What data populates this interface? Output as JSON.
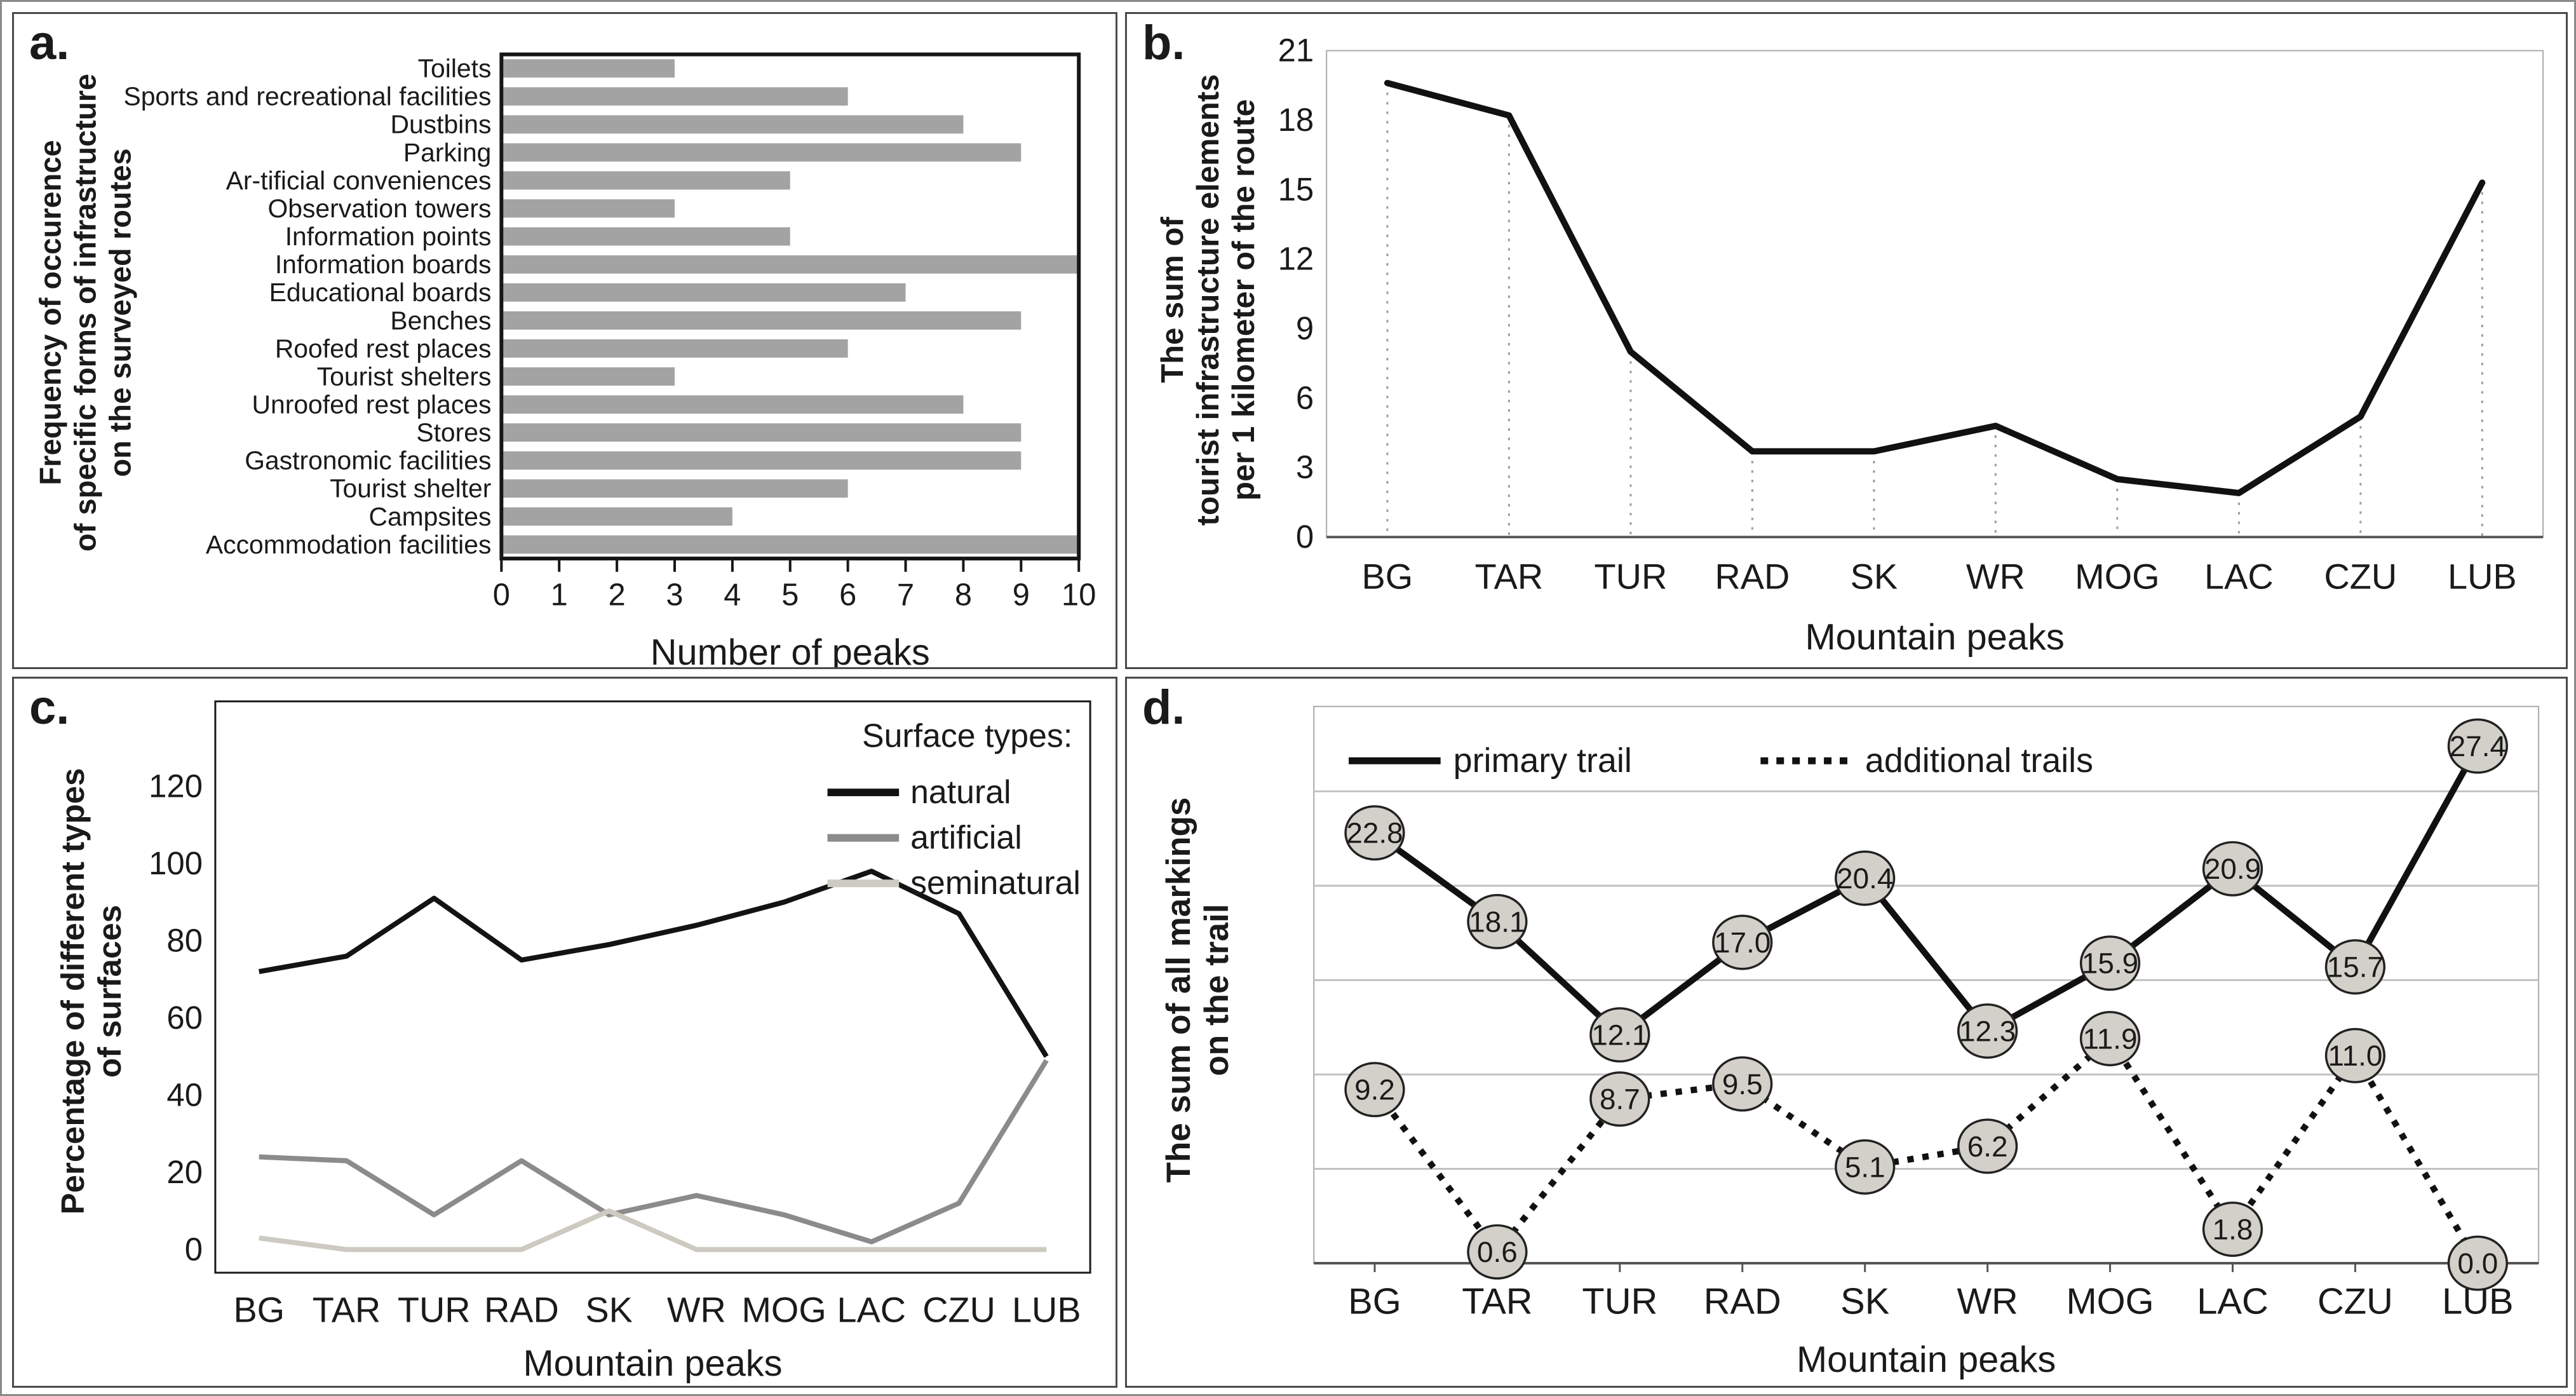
{
  "chart_data": [
    {
      "panel_label": "a.",
      "type": "bar",
      "orientation": "horizontal",
      "y_axis_label_lines": [
        "Frequency of occurence",
        "of specific forms of infrastructure",
        "on the surveyed routes"
      ],
      "xlabel": "Number of peaks",
      "categories": [
        "Toilets",
        "Sports and recreational facilities",
        "Dustbins",
        "Parking",
        "Ar-tificial conveniences",
        "Observation towers",
        "Information points",
        "Information boards",
        "Educational boards",
        "Benches",
        "Roofed rest places",
        "Tourist shelters",
        "Unroofed rest places",
        "Stores",
        "Gastronomic facilities",
        "Tourist shelter",
        "Campsites",
        "Accommodation facilities"
      ],
      "values": [
        3,
        6,
        8,
        9,
        5,
        3,
        5,
        10,
        7,
        9,
        6,
        3,
        8,
        9,
        9,
        6,
        4,
        10
      ],
      "xlim": [
        0,
        10
      ],
      "x_ticks": [
        0,
        1,
        2,
        3,
        4,
        5,
        6,
        7,
        8,
        9,
        10
      ],
      "bar_color": "#a3a3a3",
      "grid": false
    },
    {
      "panel_label": "b.",
      "type": "line",
      "y_axis_label_lines": [
        "The sum of",
        "tourist infrastructure elements",
        "per 1 kilometer of the route"
      ],
      "xlabel": "Mountain peaks",
      "categories": [
        "BG",
        "TAR",
        "TUR",
        "RAD",
        "SK",
        "WR",
        "MOG",
        "LAC",
        "CZU",
        "LUB"
      ],
      "values": [
        19.6,
        18.2,
        8.0,
        3.7,
        3.7,
        4.8,
        2.5,
        1.9,
        5.2,
        15.3
      ],
      "ylim": [
        0,
        21
      ],
      "y_ticks": [
        0,
        3,
        6,
        9,
        12,
        15,
        18,
        21
      ],
      "line_color": "#111111",
      "drop_lines": true,
      "grid": false
    },
    {
      "panel_label": "c.",
      "type": "line",
      "y_axis_label_lines": [
        "Percentage of different types",
        "of surfaces"
      ],
      "xlabel": "Mountain peaks",
      "categories": [
        "BG",
        "TAR",
        "TUR",
        "RAD",
        "SK",
        "WR",
        "MOG",
        "LAC",
        "CZU",
        "LUB"
      ],
      "legend_title": "Surface types:",
      "legend_position": "top-right",
      "series": [
        {
          "name": "natural",
          "color": "#131313",
          "values": [
            72,
            76,
            91,
            75,
            79,
            84,
            90,
            98,
            87,
            50
          ]
        },
        {
          "name": "artificial",
          "color": "#8b8b8b",
          "values": [
            24,
            23,
            9,
            23,
            9,
            14,
            9,
            2,
            12,
            49
          ]
        },
        {
          "name": "seminatural",
          "color": "#cdcac2",
          "values": [
            3,
            0,
            0,
            0,
            10,
            0,
            0,
            0,
            0,
            0
          ]
        }
      ],
      "ylim": [
        0,
        120
      ],
      "y_ticks": [
        0,
        20,
        40,
        60,
        80,
        100,
        120
      ],
      "grid": false
    },
    {
      "panel_label": "d.",
      "type": "line",
      "y_axis_label_lines": [
        "The sum of all markings",
        "on the trail"
      ],
      "xlabel": "Mountain peaks",
      "categories": [
        "BG",
        "TAR",
        "TUR",
        "RAD",
        "SK",
        "WR",
        "MOG",
        "LAC",
        "CZU",
        "LUB"
      ],
      "legend_position": "top",
      "series": [
        {
          "name": "primary trail",
          "style": "solid",
          "color": "#111111",
          "values": [
            22.8,
            18.1,
            12.1,
            17.0,
            20.4,
            12.3,
            15.9,
            20.9,
            15.7,
            27.4
          ]
        },
        {
          "name": "additional trails",
          "style": "dotted",
          "color": "#111111",
          "values": [
            9.2,
            0.6,
            8.7,
            9.5,
            5.1,
            6.2,
            11.9,
            1.8,
            11.0,
            0.0
          ]
        }
      ],
      "ylim": [
        0,
        30
      ],
      "gridline_values": [
        5,
        10,
        15,
        20,
        25
      ],
      "data_labels": true,
      "data_label_decimals": 1,
      "marker_fill": "#d3d0c9",
      "grid": true
    }
  ]
}
